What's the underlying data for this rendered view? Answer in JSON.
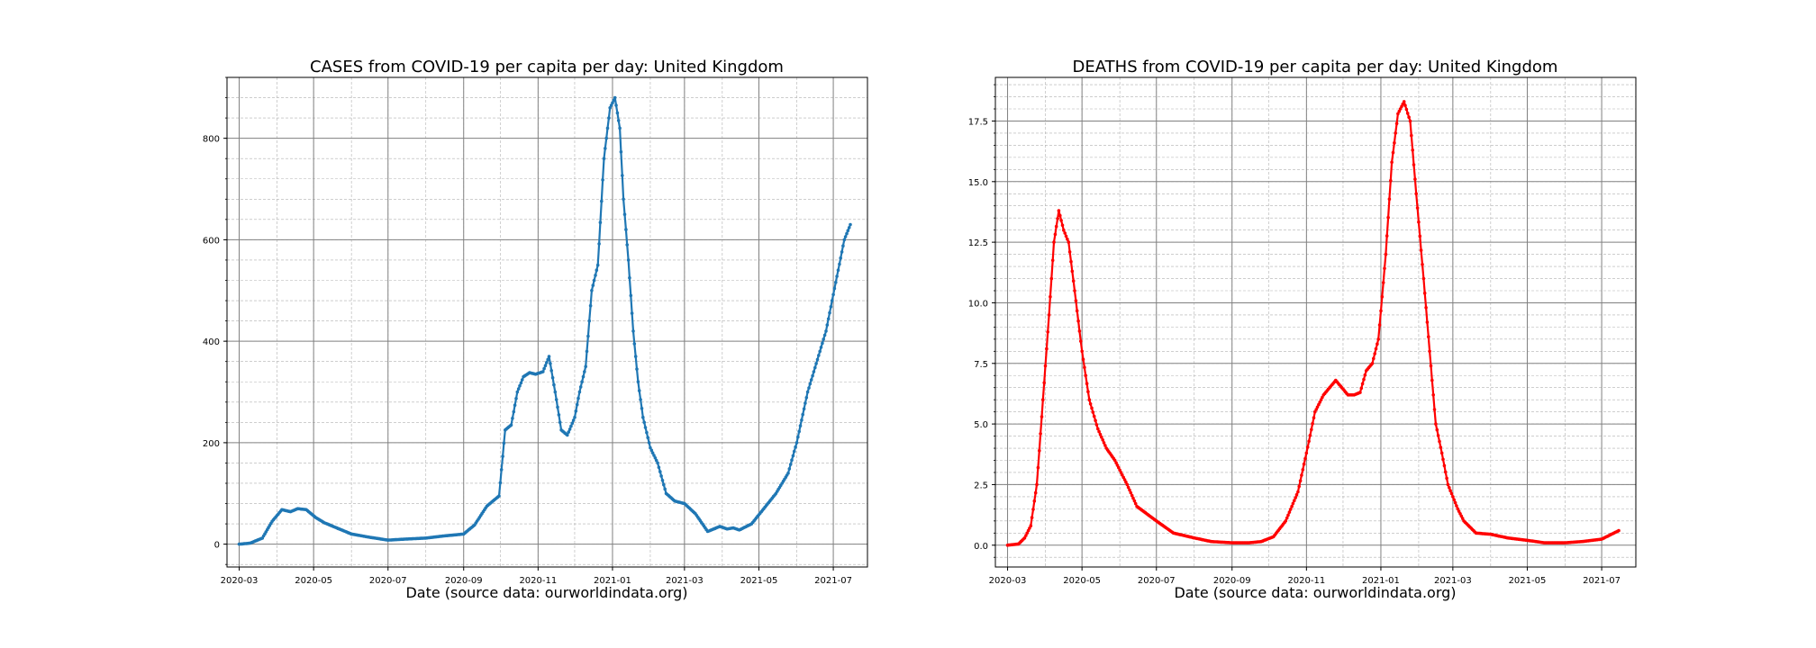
{
  "chart_data": [
    {
      "type": "line",
      "title": "CASES from COVID-19 per capita per day: United Kingdom",
      "xlabel": "Date (source data: ourworldindata.org)",
      "ylabel": "",
      "x_tick_labels": [
        "2020-03",
        "2020-05",
        "2020-07",
        "2020-09",
        "2020-11",
        "2021-01",
        "2021-03",
        "2021-05",
        "2021-07"
      ],
      "y_tick_labels": [
        "0",
        "200",
        "400",
        "600",
        "800"
      ],
      "ylim": [
        -45,
        920
      ],
      "xlim": [
        "2020-02-20",
        "2021-07-29"
      ],
      "grid": true,
      "color": "#1f77b4",
      "marker": "dot",
      "series": [
        {
          "x": [
            "2020-03-01",
            "2020-03-10",
            "2020-03-20",
            "2020-03-28",
            "2020-04-05",
            "2020-04-12",
            "2020-04-18",
            "2020-04-25",
            "2020-05-03",
            "2020-05-10",
            "2020-05-20",
            "2020-06-01",
            "2020-06-15",
            "2020-07-01",
            "2020-07-15",
            "2020-08-01",
            "2020-08-15",
            "2020-09-01",
            "2020-09-10",
            "2020-09-20",
            "2020-09-30",
            "2020-10-05",
            "2020-10-10",
            "2020-10-15",
            "2020-10-20",
            "2020-10-25",
            "2020-10-30",
            "2020-11-05",
            "2020-11-10",
            "2020-11-15",
            "2020-11-20",
            "2020-11-25",
            "2020-12-01",
            "2020-12-05",
            "2020-12-10",
            "2020-12-15",
            "2020-12-20",
            "2020-12-25",
            "2020-12-30",
            "2021-01-03",
            "2021-01-07",
            "2021-01-10",
            "2021-01-14",
            "2021-01-18",
            "2021-01-22",
            "2021-01-26",
            "2021-02-01",
            "2021-02-07",
            "2021-02-14",
            "2021-02-21",
            "2021-03-01",
            "2021-03-10",
            "2021-03-20",
            "2021-03-30",
            "2021-04-05",
            "2021-04-10",
            "2021-04-15",
            "2021-04-25",
            "2021-05-05",
            "2021-05-15",
            "2021-05-25",
            "2021-06-01",
            "2021-06-10",
            "2021-06-20",
            "2021-06-25",
            "2021-06-30",
            "2021-07-05",
            "2021-07-10",
            "2021-07-15"
          ],
          "values": [
            0,
            2,
            12,
            45,
            68,
            64,
            70,
            68,
            52,
            42,
            32,
            20,
            14,
            8,
            10,
            12,
            16,
            20,
            38,
            75,
            95,
            225,
            235,
            300,
            330,
            338,
            335,
            340,
            370,
            300,
            225,
            215,
            250,
            300,
            350,
            500,
            550,
            760,
            860,
            880,
            820,
            680,
            560,
            420,
            320,
            250,
            190,
            160,
            100,
            85,
            80,
            60,
            25,
            35,
            30,
            32,
            28,
            40,
            70,
            100,
            140,
            200,
            300,
            380,
            420,
            480,
            540,
            600,
            630
          ]
        }
      ]
    },
    {
      "type": "line",
      "title": "DEATHS from COVID-19 per capita per day: United Kingdom",
      "xlabel": "Date (source data: ourworldindata.org)",
      "ylabel": "",
      "x_tick_labels": [
        "2020-03",
        "2020-05",
        "2020-07",
        "2020-09",
        "2020-11",
        "2021-01",
        "2021-03",
        "2021-05",
        "2021-07"
      ],
      "y_tick_labels": [
        "0.0",
        "2.5",
        "5.0",
        "7.5",
        "10.0",
        "12.5",
        "15.0",
        "17.5"
      ],
      "ylim": [
        -0.9,
        19.3
      ],
      "xlim": [
        "2020-02-20",
        "2021-07-29"
      ],
      "grid": true,
      "color": "#ff0000",
      "marker": "dot",
      "series": [
        {
          "x": [
            "2020-03-01",
            "2020-03-10",
            "2020-03-15",
            "2020-03-20",
            "2020-03-25",
            "2020-03-30",
            "2020-04-04",
            "2020-04-08",
            "2020-04-12",
            "2020-04-16",
            "2020-04-20",
            "2020-04-25",
            "2020-05-01",
            "2020-05-07",
            "2020-05-14",
            "2020-05-21",
            "2020-05-28",
            "2020-06-07",
            "2020-06-15",
            "2020-07-01",
            "2020-07-15",
            "2020-08-01",
            "2020-08-15",
            "2020-09-01",
            "2020-09-15",
            "2020-09-25",
            "2020-10-05",
            "2020-10-15",
            "2020-10-25",
            "2020-11-01",
            "2020-11-08",
            "2020-11-15",
            "2020-11-20",
            "2020-11-25",
            "2020-11-30",
            "2020-12-05",
            "2020-12-10",
            "2020-12-15",
            "2020-12-20",
            "2020-12-25",
            "2020-12-30",
            "2021-01-05",
            "2021-01-10",
            "2021-01-15",
            "2021-01-20",
            "2021-01-25",
            "2021-01-30",
            "2021-02-05",
            "2021-02-10",
            "2021-02-15",
            "2021-02-20",
            "2021-02-25",
            "2021-03-01",
            "2021-03-05",
            "2021-03-10",
            "2021-03-20",
            "2021-04-01",
            "2021-04-15",
            "2021-05-01",
            "2021-05-15",
            "2021-06-01",
            "2021-06-15",
            "2021-07-01",
            "2021-07-15"
          ],
          "values": [
            0,
            0.05,
            0.3,
            0.8,
            2.5,
            6,
            9.5,
            12.5,
            13.8,
            13,
            12.5,
            10.5,
            8,
            6,
            4.8,
            4,
            3.5,
            2.5,
            1.6,
            1,
            0.5,
            0.3,
            0.15,
            0.1,
            0.1,
            0.15,
            0.35,
            1,
            2.2,
            3.8,
            5.5,
            6.2,
            6.5,
            6.8,
            6.5,
            6.2,
            6.2,
            6.3,
            7.2,
            7.5,
            8.5,
            12,
            15.8,
            17.8,
            18.3,
            17.5,
            14.5,
            11,
            8,
            5,
            3.8,
            2.5,
            2,
            1.5,
            1,
            0.5,
            0.45,
            0.3,
            0.2,
            0.1,
            0.1,
            0.15,
            0.25,
            0.6
          ]
        }
      ]
    }
  ]
}
